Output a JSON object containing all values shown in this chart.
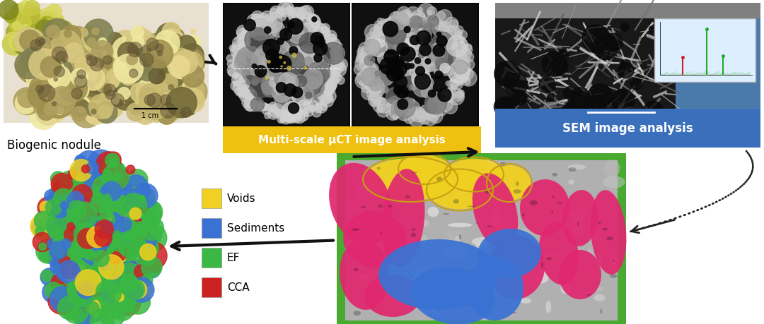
{
  "bg_color": "#ffffff",
  "biogenic_label": "Biogenic nodule",
  "ct_label": "Multi-scale μCT image analysis",
  "sem_label": "SEM image analysis",
  "legend_items": [
    {
      "label": "Voids",
      "color": "#f0d020"
    },
    {
      "label": "Sediments",
      "color": "#3a72d4"
    },
    {
      "label": "EF",
      "color": "#3ab843"
    },
    {
      "label": "CCA",
      "color": "#cc2222"
    }
  ],
  "ct_box_color": "#f0c010",
  "sem_box_color": "#4a80d9",
  "seg_border_color": "#4aaa30",
  "arrow_color": "#111111",
  "arrow_lw": 3.0,
  "dashed_color": "#222222",
  "nodule_photo_colors": [
    "#c8b870",
    "#a09050",
    "#d8c880",
    "#b0a060",
    "#e8d890",
    "#808050",
    "#f0e8a0",
    "#706838"
  ],
  "ct_bg": "#0a0a0a",
  "sem_bg": "#4a7aaa",
  "seg_bg": "#c0c0c0",
  "yellow_void": "#f0d020",
  "blue_sed": "#3a72d4",
  "pink_ef": "#e02870",
  "grey_rock": "#909090"
}
